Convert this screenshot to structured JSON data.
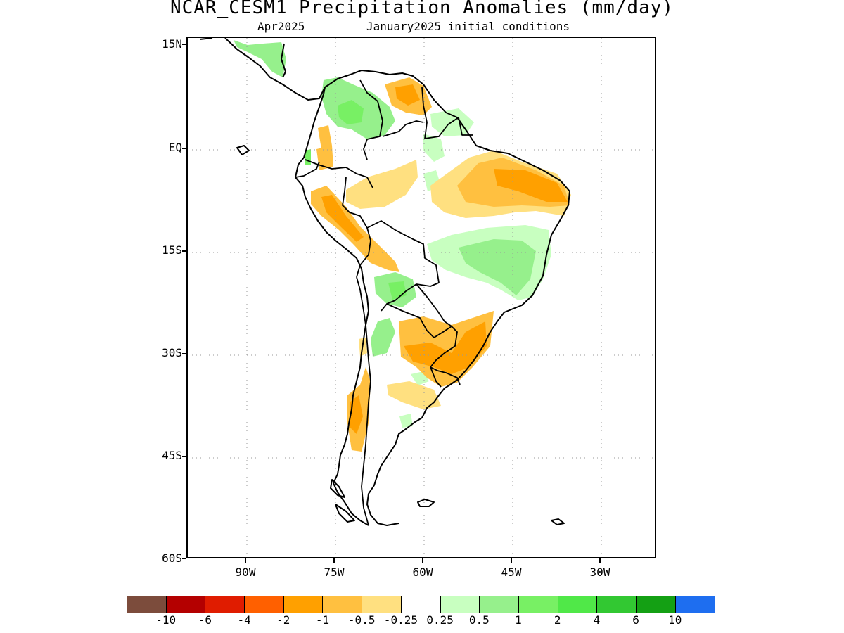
{
  "title": "NCAR_CESM1 Precipitation Anomalies (mm/day)",
  "subtitle_left": "Apr2025",
  "subtitle_right": "January2025 initial conditions",
  "map": {
    "region": "South America",
    "lat_labels": [
      "15N",
      "EQ",
      "15S",
      "30S",
      "45S",
      "60S"
    ],
    "lon_labels": [
      "90W",
      "75W",
      "60W",
      "45W",
      "30W"
    ],
    "grid": "dotted"
  },
  "colorbar": {
    "colors": [
      "#7c4c3c",
      "#b40000",
      "#e01c00",
      "#ff6000",
      "#ffa000",
      "#ffc040",
      "#ffe080",
      "#ffffff",
      "#c8ffc0",
      "#96f08c",
      "#78f064",
      "#50e848",
      "#32c832",
      "#14a014",
      "#1e6ef0"
    ],
    "labels": [
      "-10",
      "-6",
      "-4",
      "-2",
      "-1",
      "-0.5",
      "-0.25",
      "0.25",
      "0.5",
      "1",
      "2",
      "4",
      "6",
      "10"
    ]
  },
  "anomaly_colors": {
    "dry_light": "#ffe080",
    "dry_medium": "#ffc040",
    "dry_strong": "#ffa000",
    "wet_light": "#c8ffc0",
    "wet_medium": "#96f08c",
    "wet_strong": "#78f064",
    "wet_stronger": "#50e848"
  }
}
